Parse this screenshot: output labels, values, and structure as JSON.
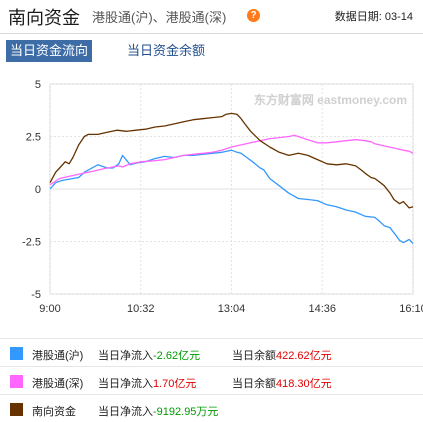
{
  "header": {
    "title": "南向资金",
    "subtitle": "港股通(沪)、港股通(深)",
    "help_icon": "question-icon",
    "date_label": "数据日期: 03-14"
  },
  "tabs": [
    {
      "label": "当日资金流向",
      "active": true
    },
    {
      "label": "当日资金余额",
      "active": false
    }
  ],
  "chart_data": {
    "type": "line",
    "watermark": "东方财富网 eastmoney.com",
    "ylim": [
      -5,
      5
    ],
    "y_ticks": [
      "5",
      "2.5",
      "0",
      "-2.5",
      "-5"
    ],
    "y_tick_values": [
      5,
      2.5,
      0,
      -2.5,
      -5
    ],
    "x_range": [
      0,
      190
    ],
    "x_ticks": [
      "9:00",
      "10:32",
      "13:04",
      "14:36",
      "16:10"
    ],
    "x_tick_positions": [
      0,
      47.5,
      95,
      142.5,
      190
    ],
    "grid": true,
    "series": [
      {
        "name": "港股通(沪)",
        "color": "#3399ff",
        "x": [
          0,
          3,
          6,
          9,
          12,
          15,
          18,
          21,
          25,
          30,
          33,
          36,
          38,
          42,
          46,
          50,
          55,
          60,
          65,
          70,
          75,
          80,
          85,
          90,
          95,
          98,
          100,
          103,
          106,
          110,
          112,
          115,
          120,
          125,
          130,
          135,
          140,
          145,
          150,
          155,
          160,
          165,
          170,
          172,
          175,
          178,
          181,
          183,
          185,
          188,
          190
        ],
        "values": [
          0,
          0.3,
          0.4,
          0.45,
          0.5,
          0.55,
          0.8,
          0.95,
          1.15,
          1.0,
          1.0,
          1.2,
          1.6,
          1.15,
          1.25,
          1.3,
          1.45,
          1.55,
          1.5,
          1.6,
          1.6,
          1.65,
          1.7,
          1.75,
          1.85,
          1.75,
          1.7,
          1.5,
          1.3,
          1.0,
          0.9,
          0.5,
          0.15,
          -0.2,
          -0.45,
          -0.5,
          -0.55,
          -0.75,
          -0.85,
          -1.0,
          -1.1,
          -1.3,
          -1.35,
          -1.5,
          -1.75,
          -1.85,
          -2.2,
          -2.45,
          -2.55,
          -2.4,
          -2.6
        ]
      },
      {
        "name": "港股通(深)",
        "color": "#ff66ff",
        "x": [
          0,
          5,
          10,
          15,
          20,
          25,
          30,
          36,
          38,
          42,
          48,
          55,
          60,
          65,
          70,
          75,
          80,
          85,
          90,
          95,
          100,
          105,
          110,
          115,
          120,
          125,
          128,
          130,
          135,
          140,
          145,
          150,
          155,
          160,
          165,
          168,
          170,
          175,
          180,
          185,
          188,
          190
        ],
        "values": [
          0.2,
          0.5,
          0.6,
          0.7,
          0.8,
          0.9,
          1.0,
          1.1,
          1.05,
          1.2,
          1.3,
          1.35,
          1.4,
          1.5,
          1.6,
          1.65,
          1.7,
          1.75,
          1.85,
          2.0,
          2.1,
          2.2,
          2.3,
          2.4,
          2.45,
          2.5,
          2.55,
          2.5,
          2.35,
          2.2,
          2.2,
          2.25,
          2.3,
          2.35,
          2.3,
          2.25,
          2.15,
          2.05,
          1.95,
          1.85,
          1.8,
          1.7
        ]
      },
      {
        "name": "南向资金",
        "color": "#663300",
        "x": [
          0,
          3,
          5,
          8,
          10,
          12,
          15,
          18,
          20,
          25,
          30,
          35,
          40,
          45,
          50,
          55,
          60,
          65,
          70,
          75,
          80,
          85,
          90,
          92,
          95,
          98,
          100,
          102,
          105,
          110,
          115,
          120,
          125,
          130,
          135,
          140,
          145,
          150,
          155,
          160,
          163,
          165,
          168,
          170,
          173,
          175,
          178,
          180,
          183,
          185,
          188,
          190
        ],
        "values": [
          0.3,
          0.8,
          1.0,
          1.3,
          1.2,
          1.5,
          2.1,
          2.5,
          2.6,
          2.6,
          2.7,
          2.8,
          2.75,
          2.8,
          2.85,
          2.95,
          3.0,
          3.1,
          3.2,
          3.3,
          3.35,
          3.4,
          3.45,
          3.55,
          3.6,
          3.55,
          3.35,
          3.1,
          2.75,
          2.3,
          2.0,
          1.75,
          1.6,
          1.7,
          1.6,
          1.4,
          1.2,
          1.15,
          1.2,
          1.1,
          0.9,
          0.75,
          0.55,
          0.5,
          0.3,
          0.15,
          -0.2,
          -0.5,
          -0.7,
          -0.6,
          -0.9,
          -0.85
        ]
      }
    ]
  },
  "legend": [
    {
      "name": "港股通(沪)",
      "color": "#3399ff",
      "flow_label": "当日净流入",
      "flow_value": "-2.62亿元",
      "balance_label": "当日余额",
      "balance_value": "422.62亿元"
    },
    {
      "name": "港股通(深)",
      "color": "#ff66ff",
      "flow_label": "当日净流入",
      "flow_value": "1.70亿元",
      "balance_label": "当日余额",
      "balance_value": "418.30亿元"
    },
    {
      "name": "南向资金",
      "color": "#663300",
      "flow_label": "当日净流入",
      "flow_value": "-9192.95万元",
      "balance_label": "",
      "balance_value": ""
    }
  ]
}
